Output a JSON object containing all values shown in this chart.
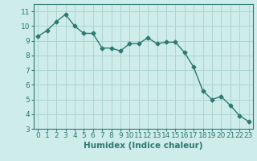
{
  "x": [
    0,
    1,
    2,
    3,
    4,
    5,
    6,
    7,
    8,
    9,
    10,
    11,
    12,
    13,
    14,
    15,
    16,
    17,
    18,
    19,
    20,
    21,
    22,
    23
  ],
  "y": [
    9.3,
    9.7,
    10.3,
    10.8,
    10.0,
    9.5,
    9.5,
    8.5,
    8.5,
    8.3,
    8.8,
    8.8,
    9.2,
    8.8,
    8.9,
    8.9,
    8.2,
    7.2,
    5.6,
    5.0,
    5.2,
    4.6,
    3.9,
    3.5
  ],
  "line_color": "#2d7a6e",
  "marker": "D",
  "marker_size": 2.5,
  "line_width": 1.0,
  "bg_color": "#ceecea",
  "grid_color": "#aed4d0",
  "xlabel": "Humidex (Indice chaleur)",
  "ylim": [
    3,
    11.5
  ],
  "xlim": [
    -0.5,
    23.5
  ],
  "yticks": [
    3,
    4,
    5,
    6,
    7,
    8,
    9,
    10,
    11
  ],
  "xticks": [
    0,
    1,
    2,
    3,
    4,
    5,
    6,
    7,
    8,
    9,
    10,
    11,
    12,
    13,
    14,
    15,
    16,
    17,
    18,
    19,
    20,
    21,
    22,
    23
  ],
  "xlabel_fontsize": 7.5,
  "tick_fontsize": 6.5
}
